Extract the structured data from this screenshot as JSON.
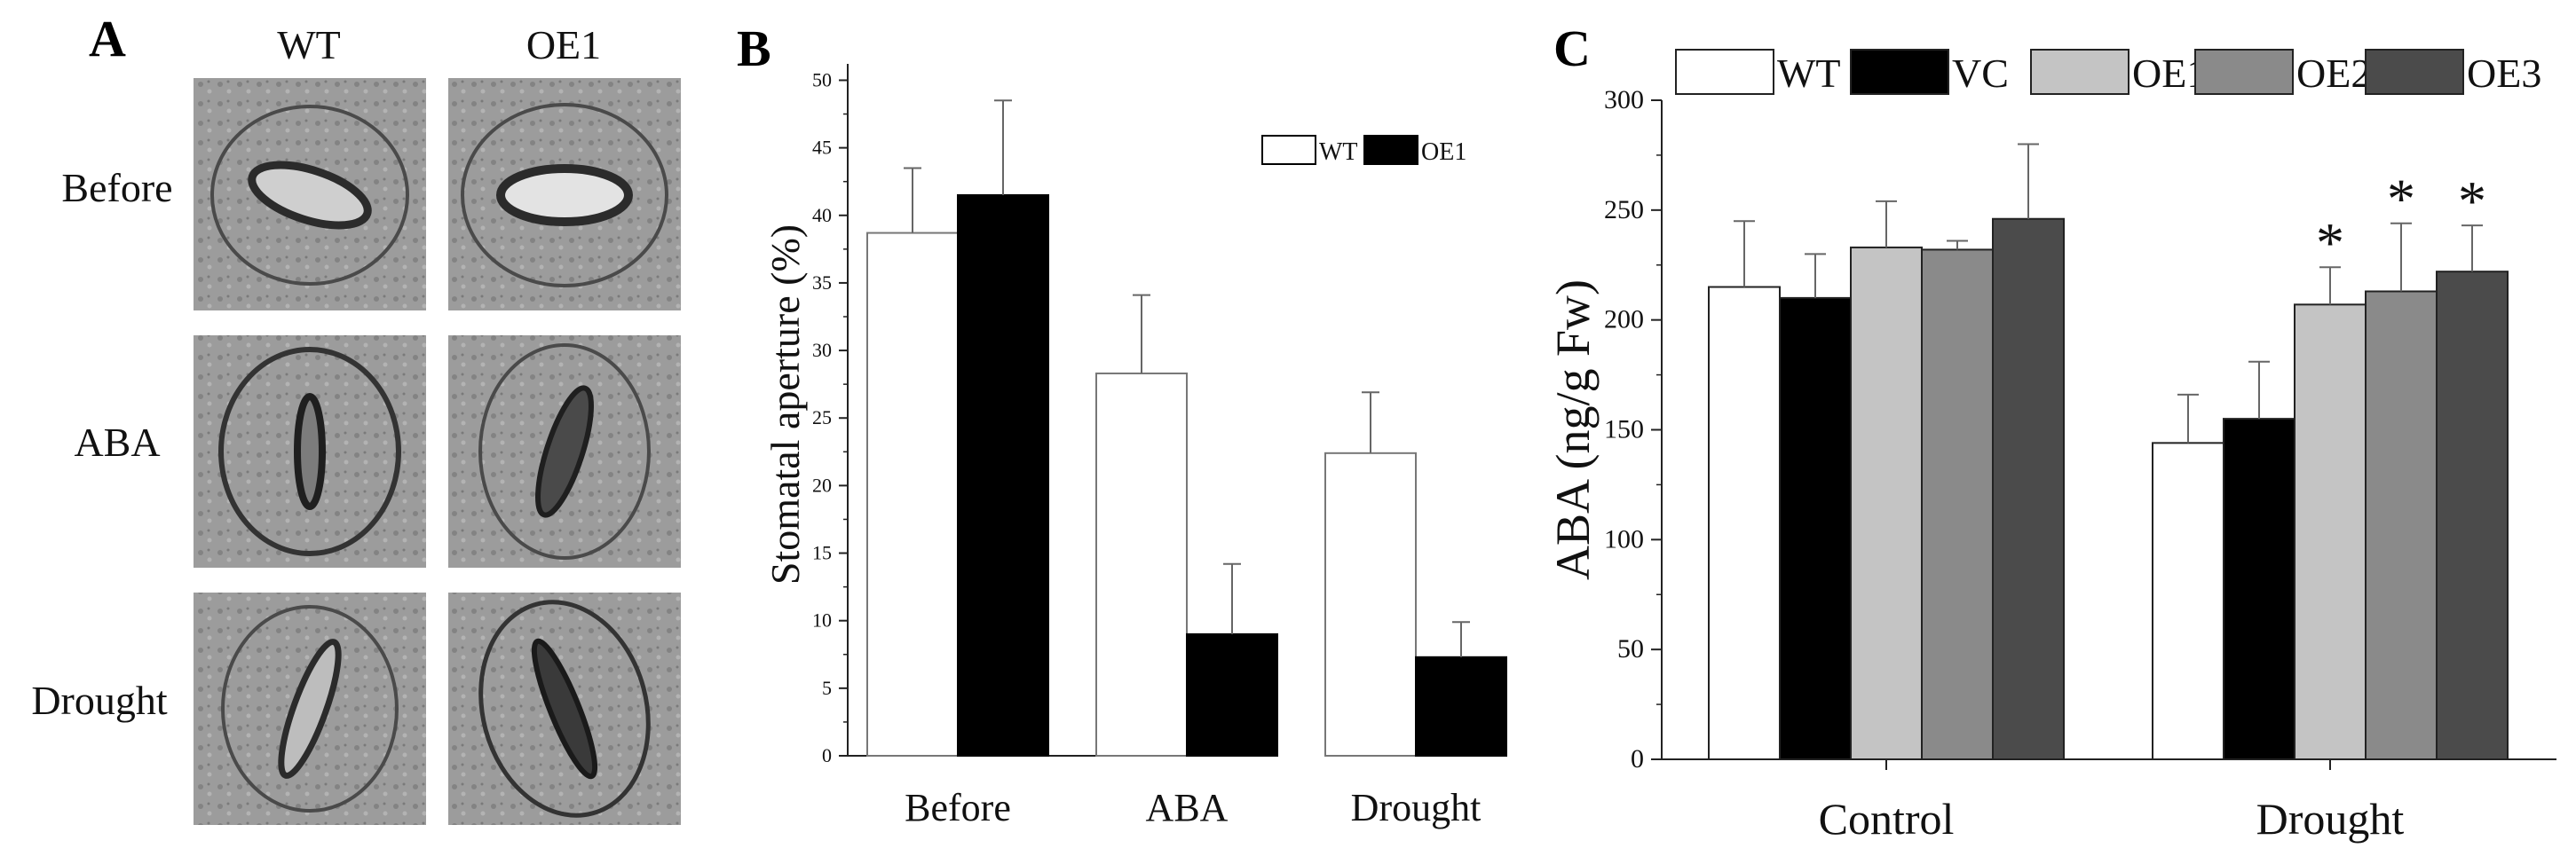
{
  "panels": {
    "a": {
      "letter": "A",
      "columns": [
        "WT",
        "OE1"
      ],
      "rows": [
        "Before",
        "ABA",
        "Drought"
      ]
    },
    "b": {
      "letter": "B"
    },
    "c": {
      "letter": "C"
    }
  },
  "chart_data": [
    {
      "id": "B",
      "type": "bar",
      "title": "",
      "xlabel": "",
      "ylabel": "Stomatal aperture (%)",
      "categories": [
        "Before",
        "ABA",
        "Drought"
      ],
      "ylim": [
        0,
        52
      ],
      "yticks": [
        0,
        5,
        10,
        15,
        20,
        25,
        30,
        35,
        40,
        45,
        50
      ],
      "legend": "top-right",
      "series": [
        {
          "name": "WT",
          "color": "#ffffff",
          "values": [
            38.7,
            28.3,
            22.4
          ],
          "errors": [
            4.8,
            5.8,
            4.5
          ]
        },
        {
          "name": "OE1",
          "color": "#000000",
          "values": [
            41.5,
            9.0,
            7.3
          ],
          "errors": [
            7.0,
            5.2,
            2.6
          ]
        }
      ]
    },
    {
      "id": "C",
      "type": "bar",
      "title": "",
      "xlabel": "",
      "ylabel": "ABA (ng/g Fw)",
      "categories": [
        "Control",
        "Drought"
      ],
      "ylim": [
        0,
        300
      ],
      "yticks": [
        0,
        50,
        100,
        150,
        200,
        250,
        300
      ],
      "legend": "top",
      "series": [
        {
          "name": "WT",
          "color": "#ffffff",
          "values": [
            215,
            144
          ],
          "errors": [
            30,
            22
          ],
          "sig": [
            "",
            ""
          ]
        },
        {
          "name": "VC",
          "color": "#000000",
          "values": [
            210,
            155
          ],
          "errors": [
            20,
            26
          ],
          "sig": [
            "",
            ""
          ]
        },
        {
          "name": "OE1",
          "color": "#c4c4c4",
          "values": [
            233,
            207
          ],
          "errors": [
            21,
            17
          ],
          "sig": [
            "",
            "*"
          ]
        },
        {
          "name": "OE2",
          "color": "#8a8a8a",
          "values": [
            232,
            213
          ],
          "errors": [
            4,
            31
          ],
          "sig": [
            "",
            "*"
          ]
        },
        {
          "name": "OE3",
          "color": "#4b4b4b",
          "values": [
            246,
            222
          ],
          "errors": [
            34,
            21
          ],
          "sig": [
            "",
            "*"
          ]
        }
      ]
    }
  ]
}
